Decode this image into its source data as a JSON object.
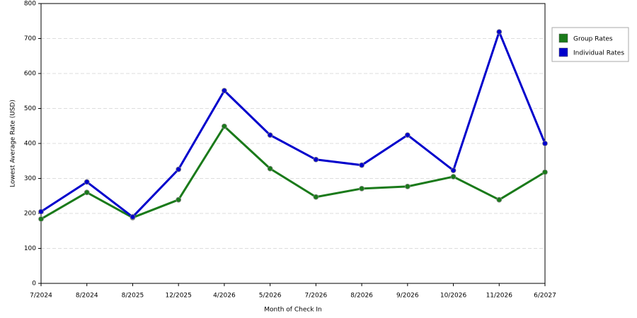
{
  "chart_data": {
    "type": "line",
    "x_label": "Month of Check In",
    "y_label": "Lowest Average Rate (USD)",
    "categories": [
      "7/2024",
      "8/2024",
      "8/2025",
      "12/2025",
      "4/2026",
      "5/2026",
      "7/2026",
      "8/2026",
      "9/2026",
      "10/2026",
      "11/2026",
      "6/2027"
    ],
    "series": [
      {
        "name": "Group Rates",
        "color": "#1a7a1a",
        "values": [
          184,
          260,
          188,
          239,
          449,
          328,
          247,
          271,
          277,
          305,
          239,
          318
        ]
      },
      {
        "name": "Individual Rates",
        "color": "#0000cc",
        "values": [
          205,
          290,
          190,
          326,
          551,
          424,
          354,
          338,
          424,
          323,
          719,
          400
        ]
      }
    ],
    "ylim": [
      0,
      800
    ],
    "yticks": [
      0,
      100,
      200,
      300,
      400,
      500,
      600,
      700,
      800
    ],
    "grid": true,
    "legend": "right"
  }
}
